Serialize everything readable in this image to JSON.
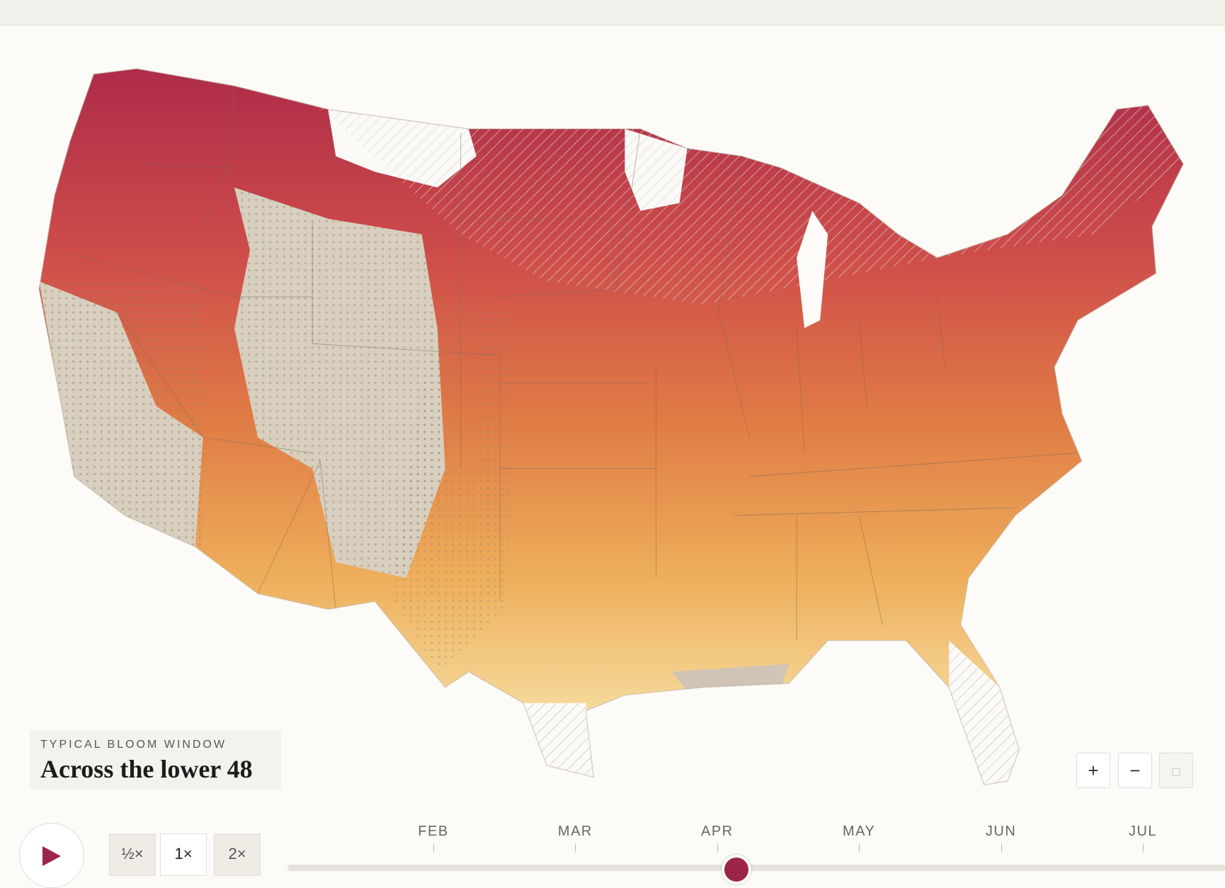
{
  "legend_box": {
    "eyebrow": "TYPICAL BLOOM WINDOW",
    "title": "Across the lower 48"
  },
  "speed_buttons": [
    "½×",
    "1×",
    "2×"
  ],
  "zoom_buttons": [
    "+",
    "−"
  ],
  "timeline": {
    "months": [
      "FEB",
      "MAR",
      "APR",
      "MAY",
      "JUN",
      "JUL"
    ]
  }
}
